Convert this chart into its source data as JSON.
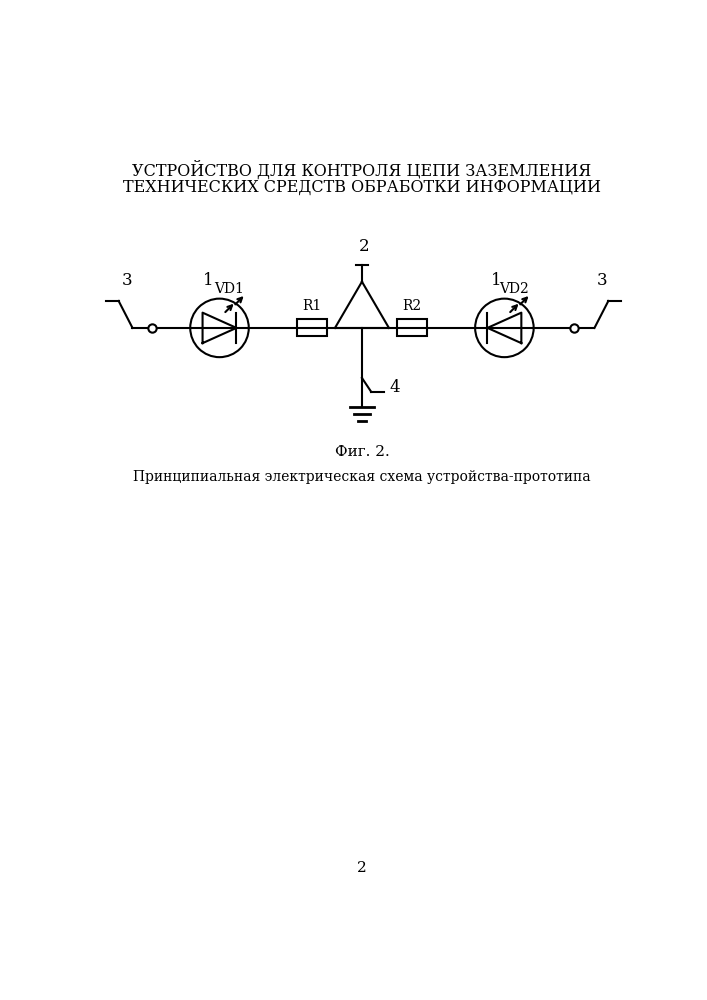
{
  "title_line1": "УСТРОЙСТВО ДЛЯ КОНТРОЛЯ ЦЕПИ ЗАЗЕМЛЕНИЯ",
  "title_line2": "ТЕХНИЧЕСКИХ СРЕДСТВ ОБРАБОТКИ ИНФОРМАЦИИ",
  "fig_label": "Фиг. 2.",
  "caption": "Принципиальная электрическая схема устройства-прототипа",
  "page_number": "2",
  "bg_color": "#ffffff",
  "line_color": "#000000",
  "title_fontsize": 11.5,
  "caption_fontsize": 10,
  "fig_label_fontsize": 11
}
